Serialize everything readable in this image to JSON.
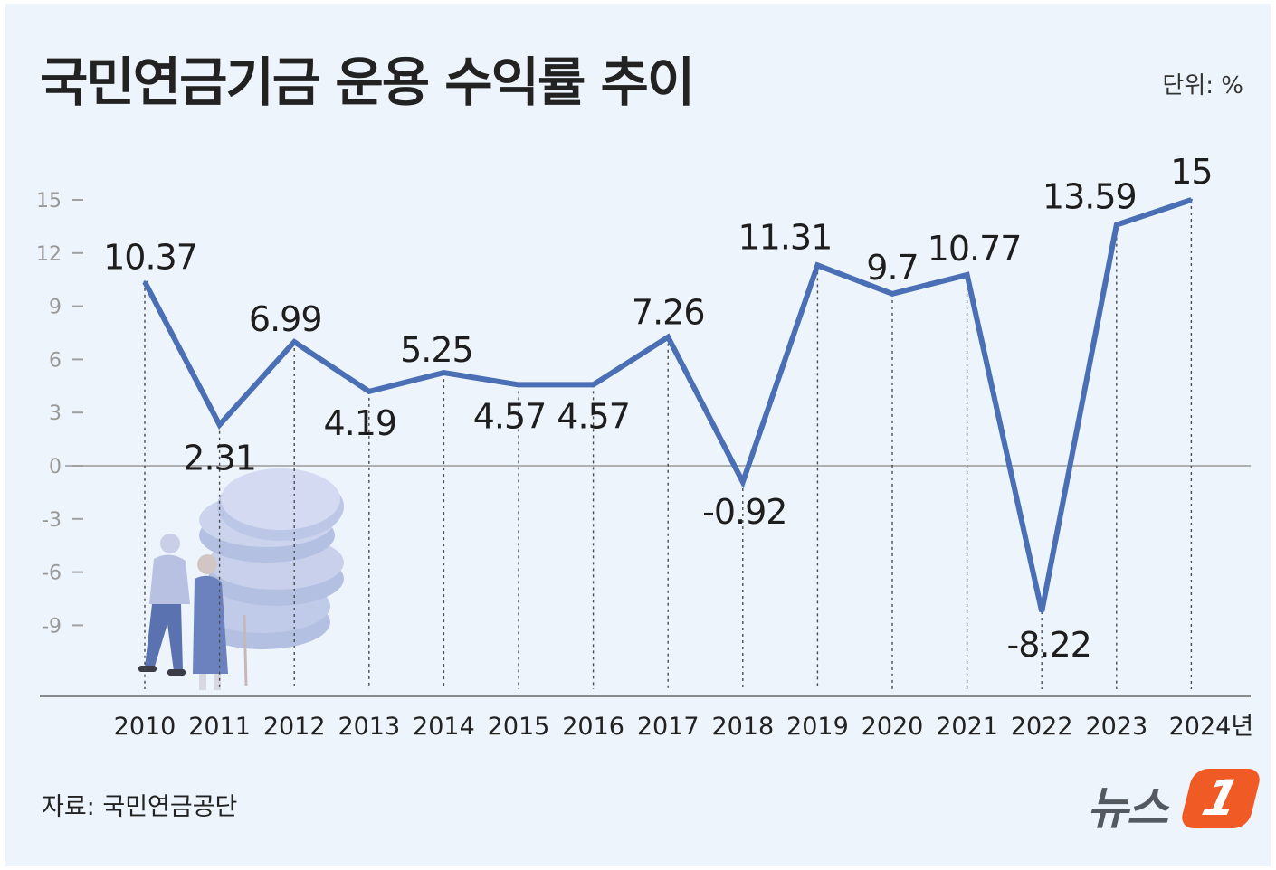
{
  "title": "국민연금기금 운용 수익률 추이",
  "unit": "단위: %",
  "source": "자료: 국민연금공단",
  "logo": {
    "text": "뉴스",
    "badge": "1"
  },
  "colors": {
    "line": "#4a6fb5",
    "background": "#eef4fc",
    "logo_orange": "#f05a24"
  },
  "chart_data": {
    "type": "line",
    "title": "국민연금기금 운용 수익률 추이",
    "xlabel": "",
    "ylabel": "단위: %",
    "x": [
      "2010",
      "2011",
      "2012",
      "2013",
      "2014",
      "2015",
      "2016",
      "2017",
      "2018",
      "2019",
      "2020",
      "2021",
      "2022",
      "2023",
      "2024년"
    ],
    "series": [
      {
        "name": "운용 수익률",
        "values": [
          10.37,
          2.31,
          6.99,
          4.19,
          5.25,
          4.57,
          4.57,
          7.26,
          -0.92,
          11.31,
          9.7,
          10.77,
          -8.22,
          13.59,
          15
        ],
        "labels": [
          "10.37",
          "2.31",
          "6.99",
          "4.19",
          "5.25",
          "4.57",
          "4.57",
          "7.26",
          "-0.92",
          "11.31",
          "9.7",
          "10.77",
          "-8.22",
          "13.59",
          "15"
        ]
      }
    ],
    "yticks": [
      "15",
      "12",
      "9",
      "6",
      "3",
      "0",
      "-3",
      "-6",
      "-9"
    ],
    "ylim": [
      -13,
      16
    ],
    "grid": false
  }
}
